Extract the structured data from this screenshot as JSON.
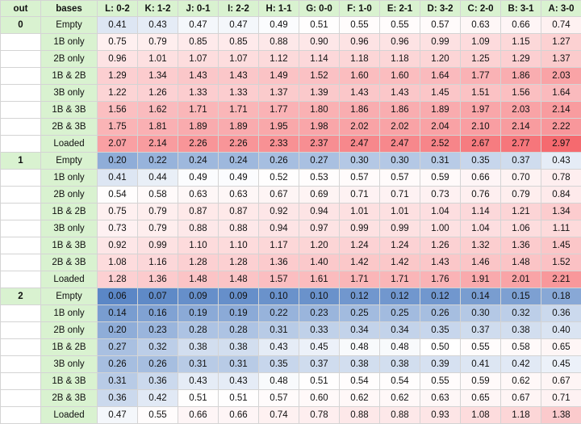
{
  "headers": [
    "out",
    "bases",
    "L: 0-2",
    "K: 1-2",
    "J: 0-1",
    "I: 2-2",
    "H: 1-1",
    "G: 0-0",
    "F: 1-0",
    "E: 2-1",
    "D: 3-2",
    "C: 2-0",
    "B: 3-1",
    "A: 3-0"
  ],
  "bases": [
    "Empty",
    "1B only",
    "2B only",
    "1B & 2B",
    "3B only",
    "1B & 3B",
    "2B & 3B",
    "Loaded"
  ],
  "groups": [
    {
      "out": "0",
      "rows": [
        [
          "0.41",
          "0.43",
          "0.47",
          "0.47",
          "0.49",
          "0.51",
          "0.55",
          "0.55",
          "0.57",
          "0.63",
          "0.66",
          "0.74"
        ],
        [
          "0.75",
          "0.79",
          "0.85",
          "0.85",
          "0.88",
          "0.90",
          "0.96",
          "0.96",
          "0.99",
          "1.09",
          "1.15",
          "1.27"
        ],
        [
          "0.96",
          "1.01",
          "1.07",
          "1.07",
          "1.12",
          "1.14",
          "1.18",
          "1.18",
          "1.20",
          "1.25",
          "1.29",
          "1.37"
        ],
        [
          "1.29",
          "1.34",
          "1.43",
          "1.43",
          "1.49",
          "1.52",
          "1.60",
          "1.60",
          "1.64",
          "1.77",
          "1.86",
          "2.03"
        ],
        [
          "1.22",
          "1.26",
          "1.33",
          "1.33",
          "1.37",
          "1.39",
          "1.43",
          "1.43",
          "1.45",
          "1.51",
          "1.56",
          "1.64"
        ],
        [
          "1.56",
          "1.62",
          "1.71",
          "1.71",
          "1.77",
          "1.80",
          "1.86",
          "1.86",
          "1.89",
          "1.97",
          "2.03",
          "2.14"
        ],
        [
          "1.75",
          "1.81",
          "1.89",
          "1.89",
          "1.95",
          "1.98",
          "2.02",
          "2.02",
          "2.04",
          "2.10",
          "2.14",
          "2.22"
        ],
        [
          "2.07",
          "2.14",
          "2.26",
          "2.26",
          "2.33",
          "2.37",
          "2.47",
          "2.47",
          "2.52",
          "2.67",
          "2.77",
          "2.97"
        ]
      ]
    },
    {
      "out": "1",
      "rows": [
        [
          "0.20",
          "0.22",
          "0.24",
          "0.24",
          "0.26",
          "0.27",
          "0.30",
          "0.30",
          "0.31",
          "0.35",
          "0.37",
          "0.43"
        ],
        [
          "0.41",
          "0.44",
          "0.49",
          "0.49",
          "0.52",
          "0.53",
          "0.57",
          "0.57",
          "0.59",
          "0.66",
          "0.70",
          "0.78"
        ],
        [
          "0.54",
          "0.58",
          "0.63",
          "0.63",
          "0.67",
          "0.69",
          "0.71",
          "0.71",
          "0.73",
          "0.76",
          "0.79",
          "0.84"
        ],
        [
          "0.75",
          "0.79",
          "0.87",
          "0.87",
          "0.92",
          "0.94",
          "1.01",
          "1.01",
          "1.04",
          "1.14",
          "1.21",
          "1.34"
        ],
        [
          "0.73",
          "0.79",
          "0.88",
          "0.88",
          "0.94",
          "0.97",
          "0.99",
          "0.99",
          "1.00",
          "1.04",
          "1.06",
          "1.11"
        ],
        [
          "0.92",
          "0.99",
          "1.10",
          "1.10",
          "1.17",
          "1.20",
          "1.24",
          "1.24",
          "1.26",
          "1.32",
          "1.36",
          "1.45"
        ],
        [
          "1.08",
          "1.16",
          "1.28",
          "1.28",
          "1.36",
          "1.40",
          "1.42",
          "1.42",
          "1.43",
          "1.46",
          "1.48",
          "1.52"
        ],
        [
          "1.28",
          "1.36",
          "1.48",
          "1.48",
          "1.57",
          "1.61",
          "1.71",
          "1.71",
          "1.76",
          "1.91",
          "2.01",
          "2.21"
        ]
      ]
    },
    {
      "out": "2",
      "rows": [
        [
          "0.06",
          "0.07",
          "0.09",
          "0.09",
          "0.10",
          "0.10",
          "0.12",
          "0.12",
          "0.12",
          "0.14",
          "0.15",
          "0.18"
        ],
        [
          "0.14",
          "0.16",
          "0.19",
          "0.19",
          "0.22",
          "0.23",
          "0.25",
          "0.25",
          "0.26",
          "0.30",
          "0.32",
          "0.36"
        ],
        [
          "0.20",
          "0.23",
          "0.28",
          "0.28",
          "0.31",
          "0.33",
          "0.34",
          "0.34",
          "0.35",
          "0.37",
          "0.38",
          "0.40"
        ],
        [
          "0.27",
          "0.32",
          "0.38",
          "0.38",
          "0.43",
          "0.45",
          "0.48",
          "0.48",
          "0.50",
          "0.55",
          "0.58",
          "0.65"
        ],
        [
          "0.26",
          "0.26",
          "0.31",
          "0.31",
          "0.35",
          "0.37",
          "0.38",
          "0.38",
          "0.39",
          "0.41",
          "0.42",
          "0.45"
        ],
        [
          "0.31",
          "0.36",
          "0.43",
          "0.43",
          "0.48",
          "0.51",
          "0.54",
          "0.54",
          "0.55",
          "0.59",
          "0.62",
          "0.67"
        ],
        [
          "0.36",
          "0.42",
          "0.51",
          "0.51",
          "0.57",
          "0.60",
          "0.62",
          "0.62",
          "0.63",
          "0.65",
          "0.67",
          "0.71"
        ],
        [
          "0.47",
          "0.55",
          "0.66",
          "0.66",
          "0.74",
          "0.78",
          "0.88",
          "0.88",
          "0.93",
          "1.08",
          "1.18",
          "1.38"
        ]
      ]
    }
  ],
  "colors": {
    "header_bg": "#d9f2d0",
    "low": "#5b87c6",
    "mid": "#ffffff",
    "high": "#f56a6f",
    "border": "#d4d4d4"
  }
}
